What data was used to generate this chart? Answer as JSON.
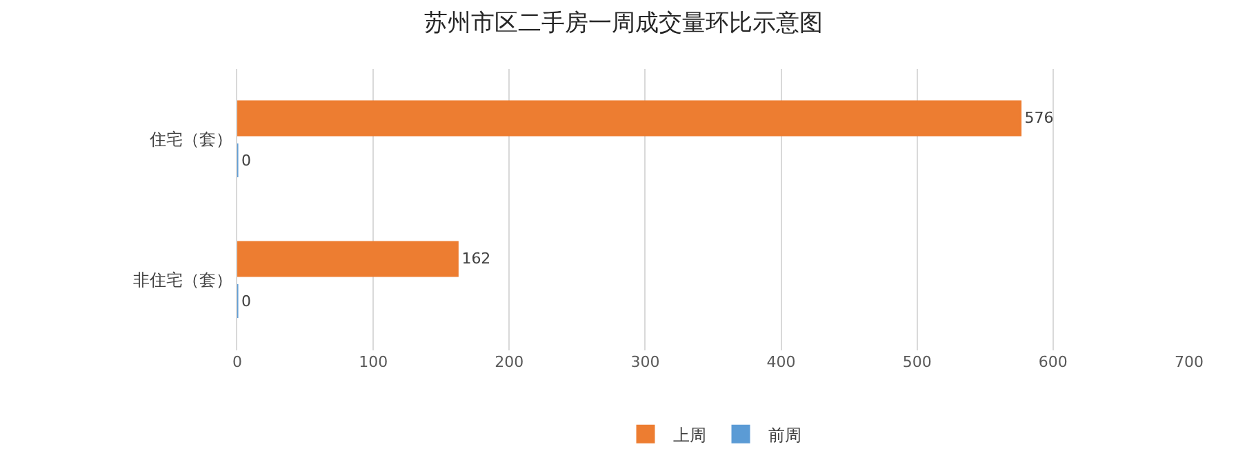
{
  "chart_data": {
    "type": "bar",
    "orientation": "horizontal",
    "title": "苏州市区二手房一周成交量环比示意图",
    "categories": [
      "住宅（套）",
      "非住宅（套）"
    ],
    "series": [
      {
        "name": "上周",
        "color": "#ed7d31",
        "values": [
          576,
          162
        ]
      },
      {
        "name": "前周",
        "color": "#5b9bd5",
        "values": [
          0,
          0
        ]
      }
    ],
    "xlim": [
      0,
      700
    ],
    "xticks": [
      0,
      100,
      200,
      300,
      400,
      500,
      600,
      700
    ],
    "grid": "x",
    "legend": "bottom",
    "data_labels": true
  }
}
